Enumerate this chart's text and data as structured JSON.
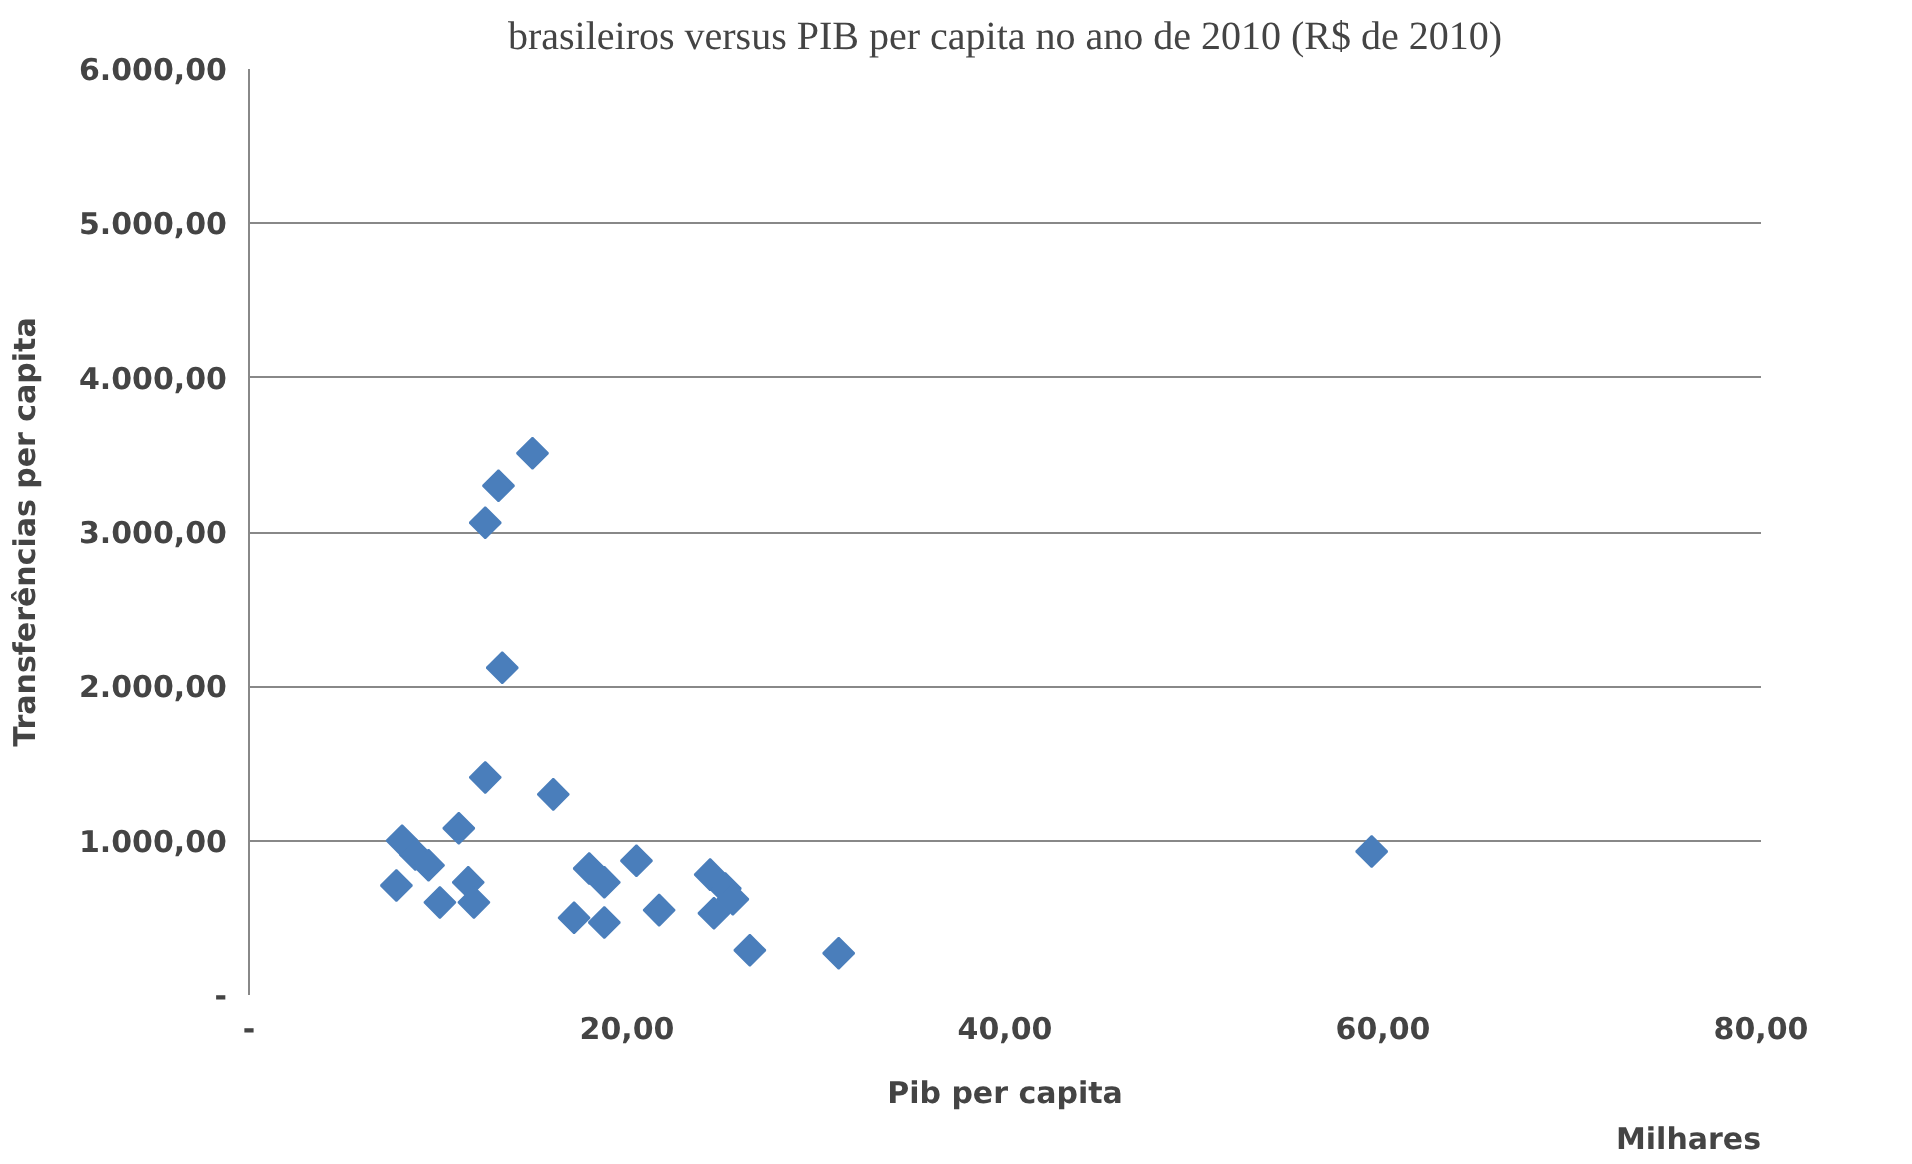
{
  "chart_data": {
    "type": "scatter",
    "title": "brasileiros versus PIB per capita no ano de 2010 (R$ de 2010)",
    "xlabel": "Pib per capita",
    "ylabel": "Transferências per capita",
    "annotations": [
      "Milhares"
    ],
    "x": [
      15.0,
      13.2,
      12.5,
      13.4,
      12.5,
      16.1,
      11.1,
      8.1,
      8.8,
      9.5,
      7.8,
      10.1,
      11.6,
      11.9,
      18.0,
      18.8,
      20.5,
      17.2,
      18.8,
      21.7,
      24.4,
      25.2,
      25.6,
      24.6,
      26.5,
      31.2,
      59.4
    ],
    "series": [
      {
        "color": "#4a7ebb",
        "values": [
          3510,
          3300,
          3060,
          2120,
          1410,
          1300,
          1080,
          1000,
          910,
          840,
          710,
          600,
          730,
          600,
          820,
          730,
          870,
          500,
          470,
          550,
          780,
          690,
          620,
          530,
          290,
          270,
          930
        ]
      }
    ],
    "xlim": [
      0,
      80
    ],
    "xticks": [
      {
        "value": 0,
        "label": "-"
      },
      {
        "value": 20,
        "label": "20,00"
      },
      {
        "value": 40,
        "label": "40,00"
      },
      {
        "value": 60,
        "label": "60,00"
      },
      {
        "value": 80,
        "label": "80,00"
      }
    ],
    "ylim": [
      0,
      6000
    ],
    "yticks": [
      {
        "value": 0,
        "label": "-"
      },
      {
        "value": 1000,
        "label": "1.000,00"
      },
      {
        "value": 2000,
        "label": "2.000,00"
      },
      {
        "value": 3000,
        "label": "3.000,00"
      },
      {
        "value": 4000,
        "label": "4.000,00"
      },
      {
        "value": 5000,
        "label": "5.000,00"
      },
      {
        "value": 6000,
        "label": "6.000,00"
      }
    ],
    "grid": "y",
    "marker": "diamond"
  }
}
